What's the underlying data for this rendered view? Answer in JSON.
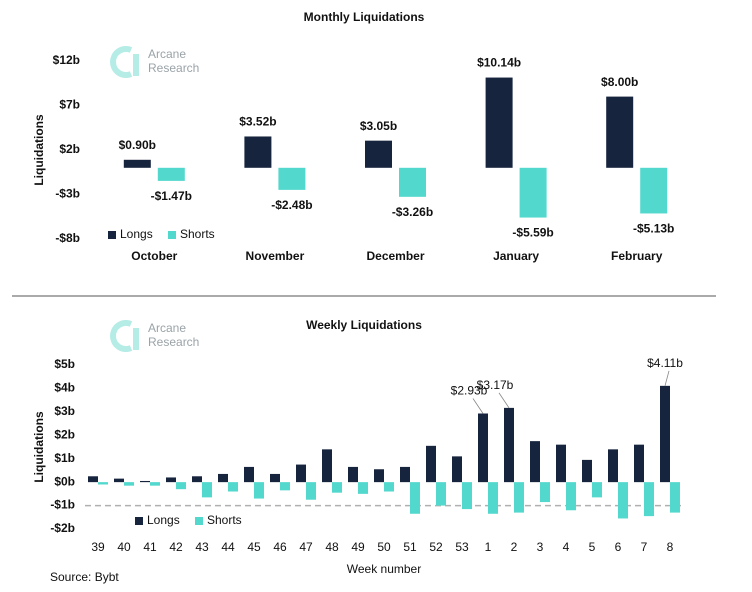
{
  "chart_data": [
    {
      "type": "bar",
      "title": "Monthly Liquidations",
      "y_label": "Liquidations",
      "watermark": [
        "Arcane",
        "Research"
      ],
      "categories": [
        "October",
        "November",
        "December",
        "January",
        "February"
      ],
      "series": [
        {
          "name": "Longs",
          "color": "#16243d",
          "values": [
            0.9,
            3.52,
            3.05,
            10.14,
            8.0
          ],
          "value_labels": [
            "$0.90b",
            "$3.52b",
            "$3.05b",
            "$10.14b",
            "$8.00b"
          ]
        },
        {
          "name": "Shorts",
          "color": "#52d8cd",
          "values": [
            -1.47,
            -2.48,
            -3.26,
            -5.59,
            -5.13
          ],
          "value_labels": [
            "-$1.47b",
            "-$2.48b",
            "-$3.26b",
            "-$5.59b",
            "-$5.13b"
          ]
        }
      ],
      "ylim": [
        -8,
        12
      ],
      "yticks": [
        {
          "value": -8,
          "label": "-$8b"
        },
        {
          "value": -3,
          "label": "-$3b"
        },
        {
          "value": 2,
          "label": "$2b"
        },
        {
          "value": 7,
          "label": "$7b"
        },
        {
          "value": 12,
          "label": "$12b"
        }
      ]
    },
    {
      "type": "bar",
      "title": "Weekly Liquidations",
      "y_label": "Liquidations",
      "x_label": "Week number",
      "watermark": [
        "Arcane",
        "Research"
      ],
      "categories": [
        "39",
        "40",
        "41",
        "42",
        "43",
        "44",
        "45",
        "46",
        "47",
        "48",
        "49",
        "50",
        "51",
        "52",
        "53",
        "1",
        "2",
        "3",
        "4",
        "5",
        "6",
        "7",
        "8"
      ],
      "series": [
        {
          "name": "Longs",
          "color": "#16243d",
          "values": [
            0.25,
            0.15,
            0.05,
            0.2,
            0.25,
            0.35,
            0.65,
            0.35,
            0.75,
            1.4,
            0.65,
            0.55,
            0.65,
            1.55,
            1.1,
            2.93,
            3.17,
            1.75,
            1.6,
            0.95,
            1.4,
            1.6,
            4.11
          ],
          "value_labels": [
            null,
            null,
            null,
            null,
            null,
            null,
            null,
            null,
            null,
            null,
            null,
            null,
            null,
            null,
            null,
            "$2.93b",
            "$3.17b",
            null,
            null,
            null,
            null,
            null,
            "$4.11b"
          ]
        },
        {
          "name": "Shorts",
          "color": "#52d8cd",
          "values": [
            -0.1,
            -0.15,
            -0.15,
            -0.3,
            -0.65,
            -0.4,
            -0.7,
            -0.35,
            -0.75,
            -0.45,
            -0.5,
            -0.4,
            -1.35,
            -1.0,
            -1.15,
            -1.35,
            -1.3,
            -0.85,
            -1.2,
            -0.65,
            -1.55,
            -1.45,
            -1.3
          ]
        }
      ],
      "reference_line": -1,
      "ylim": [
        -2,
        5
      ],
      "yticks": [
        {
          "value": -2,
          "label": "-$2b"
        },
        {
          "value": -1,
          "label": "-$1b"
        },
        {
          "value": 0,
          "label": "$0b"
        },
        {
          "value": 1,
          "label": "$1b"
        },
        {
          "value": 2,
          "label": "$2b"
        },
        {
          "value": 3,
          "label": "$3b"
        },
        {
          "value": 4,
          "label": "$4b"
        },
        {
          "value": 5,
          "label": "$5b"
        }
      ]
    }
  ],
  "source": "Source: Bybt"
}
